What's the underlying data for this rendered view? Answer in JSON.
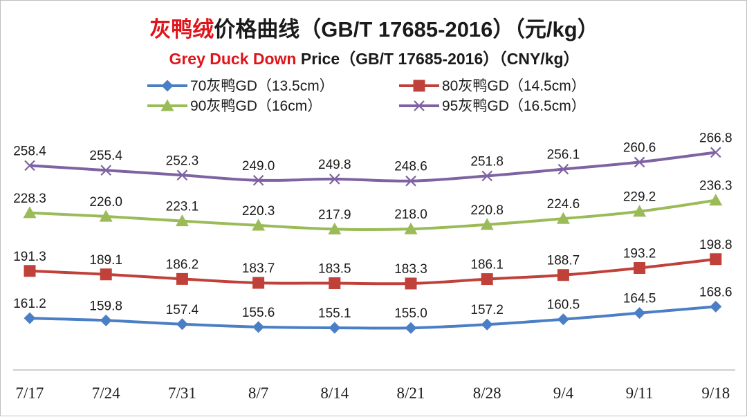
{
  "chart_data": {
    "type": "line",
    "title": {
      "part1_red": "灰鸭绒",
      "part1_black": "价格曲线（GB/T 17685-2016）（元/kg）",
      "part2_red": "Grey Duck Down",
      "part2_black": " Price（GB/T 17685-2016）（CNY/kg）"
    },
    "categories": [
      "7/17",
      "7/24",
      "7/31",
      "8/7",
      "8/14",
      "8/21",
      "8/28",
      "9/4",
      "9/11",
      "9/18"
    ],
    "ylim": [
      130,
      285
    ],
    "grid": false,
    "legend_position": "top",
    "series": [
      {
        "name": "70灰鸭GD（13.5cm）",
        "color": "#4a7ec5",
        "marker": "diamond",
        "values": [
          161.2,
          159.8,
          157.4,
          155.6,
          155.1,
          155.0,
          157.2,
          160.5,
          164.5,
          168.6
        ],
        "labels": [
          "161.2",
          "159.8",
          "157.4",
          "155.6",
          "155.1",
          "155.0",
          "157.2",
          "160.5",
          "164.5",
          "168.6"
        ]
      },
      {
        "name": "80灰鸭GD（14.5cm）",
        "color": "#c0403a",
        "marker": "square",
        "values": [
          191.3,
          189.1,
          186.2,
          183.7,
          183.5,
          183.3,
          186.1,
          188.7,
          193.2,
          198.8
        ],
        "labels": [
          "191.3",
          "189.1",
          "186.2",
          "183.7",
          "183.5",
          "183.3",
          "186.1",
          "188.7",
          "193.2",
          "198.8"
        ]
      },
      {
        "name": "90灰鸭GD（16cm）",
        "color": "#9bbb59",
        "marker": "triangle",
        "values": [
          228.3,
          226.0,
          223.1,
          220.3,
          217.9,
          218.0,
          220.8,
          224.6,
          229.2,
          236.3
        ],
        "labels": [
          "228.3",
          "226.0",
          "223.1",
          "220.3",
          "217.9",
          "218.0",
          "220.8",
          "224.6",
          "229.2",
          "236.3"
        ]
      },
      {
        "name": "95灰鸭GD（16.5cm）",
        "color": "#7e62a1",
        "marker": "x",
        "values": [
          258.4,
          255.4,
          252.3,
          249.0,
          249.8,
          248.6,
          251.8,
          256.1,
          260.6,
          266.8
        ],
        "labels": [
          "258.4",
          "255.4",
          "252.3",
          "249.0",
          "249.8",
          "248.6",
          "251.8",
          "256.1",
          "260.6",
          "266.8"
        ]
      }
    ]
  }
}
